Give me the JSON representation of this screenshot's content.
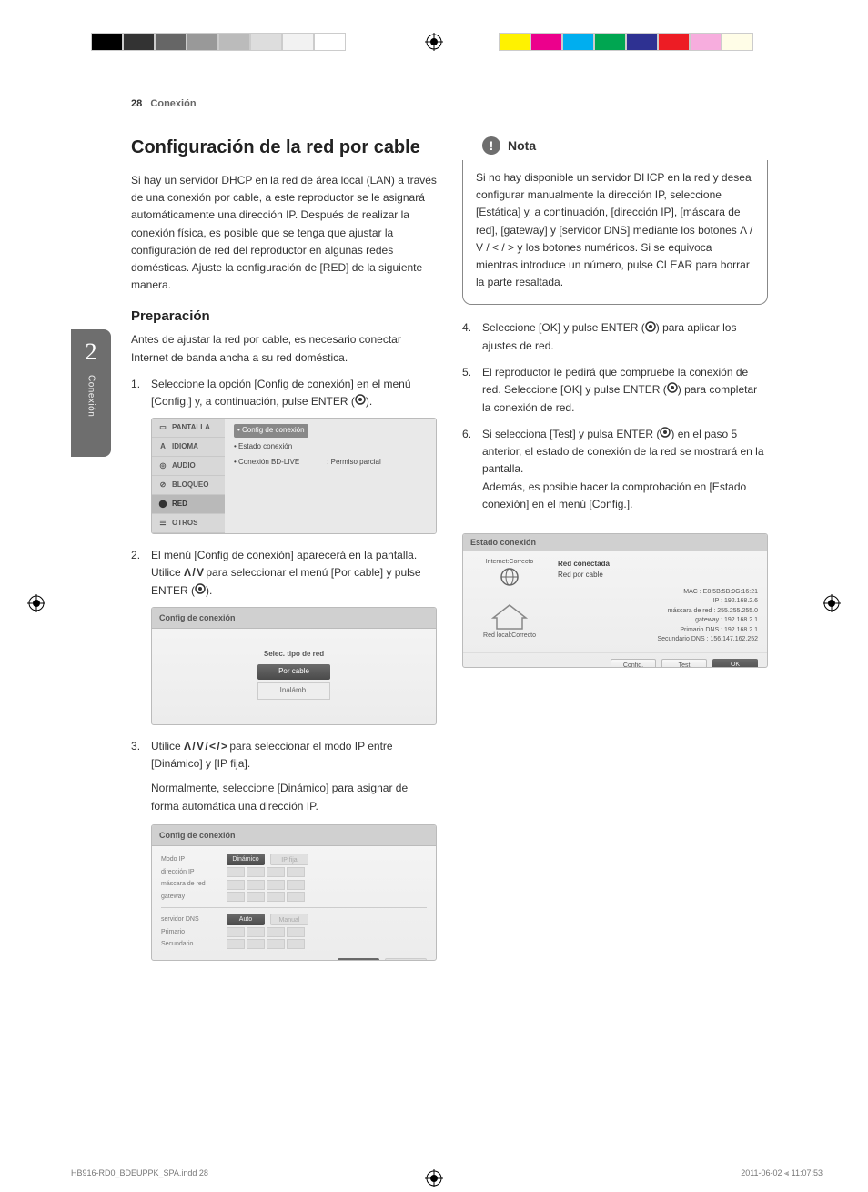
{
  "print_marks": {
    "left_swatches": [
      "#000000",
      "#333333",
      "#666666",
      "#999999",
      "#bbbbbb",
      "#dddddd",
      "#f2f2f2",
      "#ffffff"
    ],
    "right_swatches": [
      "#fff200",
      "#ec008c",
      "#00aeef",
      "#00a651",
      "#2e3192",
      "#ed1c24",
      "#f7adde",
      "#fffde7"
    ]
  },
  "header": {
    "page_number": "28",
    "section": "Conexión"
  },
  "side_tab": {
    "number": "2",
    "label": "Conexión"
  },
  "left_col": {
    "h1": "Configuración de la red por cable",
    "intro": "Si hay un servidor DHCP en la red de área local (LAN) a través de una conexión por cable, a este reproductor se le asignará automáticamente una dirección IP. Después de realizar la conexión física, es posible que se tenga que ajustar la configuración de red del reproductor en algunas redes domésticas. Ajuste la configuración de [RED] de la siguiente manera.",
    "h2": "Preparación",
    "prep": "Antes de ajustar la red por cable, es necesario conectar Internet de banda ancha a su red doméstica.",
    "step1": "Seleccione la opción [Config de conexión] en el menú [Config.] y, a continuación, pulse ENTER (",
    "step1b": ").",
    "screenshot1": {
      "side_items": [
        "PANTALLA",
        "IDIOMA",
        "AUDIO",
        "BLOQUEO",
        "RED",
        "OTROS"
      ],
      "selected_index": 4,
      "main_rows": [
        {
          "text": "Config de conexión",
          "hl": true
        },
        {
          "text": "Estado conexión",
          "hl": false
        },
        {
          "text": "Conexión BD-LIVE",
          "hl": false,
          "right": ": Permiso parcial"
        }
      ]
    },
    "step2a": "El menú [Config de conexión] aparecerá en la pantalla. Utilice ",
    "step2b": " para seleccionar el menú [Por cable] y pulse ENTER (",
    "step2c": ").",
    "screenshot2": {
      "title": "Config de conexión",
      "subtitle": "Selec. tipo de red",
      "options": [
        "Por cable",
        "Inalámb."
      ],
      "selected": 0
    },
    "step3a": "Utilice ",
    "step3b": " para seleccionar el modo IP entre [Dinámico] y [IP fija].",
    "step3p": "Normalmente, seleccione [Dinámico] para asignar de forma automática una dirección IP.",
    "screenshot3": {
      "title": "Config de conexión",
      "rows": [
        {
          "label": "Modo IP",
          "on": "Dinámico",
          "off": "IP fija"
        },
        {
          "label": "dirección IP",
          "cells": true
        },
        {
          "label": "máscara de red",
          "cells": true
        },
        {
          "label": "gateway",
          "cells": true
        }
      ],
      "rows2": [
        {
          "label": "servidor DNS",
          "on": "Auto",
          "off": "Manual"
        },
        {
          "label": "Primario",
          "cells": true
        },
        {
          "label": "Secundario",
          "cells": true
        }
      ],
      "foot": [
        "OK",
        "Cancelar"
      ]
    }
  },
  "right_col": {
    "note_label": "Nota",
    "note_body": "Si no hay disponible un servidor DHCP en la red y desea configurar manualmente la dirección IP, seleccione [Estática] y, a continuación, [dirección IP], [máscara de red], [gateway] y [servidor DNS] mediante los botones Λ / V / < / > y los botones numéricos. Si se equivoca mientras introduce un número, pulse CLEAR para borrar la parte resaltada.",
    "step4a": "Seleccione [OK] y pulse ENTER (",
    "step4b": ") para aplicar los ajustes de red.",
    "step5a": "El reproductor le pedirá que compruebe la conexión de red. Seleccione [OK] y pulse ENTER (",
    "step5b": ") para completar la conexión de red.",
    "step6a": "Si selecciona [Test] y pulsa ENTER (",
    "step6b": ") en el paso 5 anterior, el estado de conexión de la red se mostrará en la pantalla.",
    "step6c": "Además, es posible hacer la comprobación en [Estado conexión] en el menú [Config.].",
    "screenshot4": {
      "title": "Estado conexión",
      "top_label": "Internet:Correcto",
      "bottom_label": "Red local:Correcto",
      "right_title": "Red conectada",
      "right_sub": "Red por cable",
      "vals": [
        "MAC : E8:5B:5B:9G:16:21",
        "IP : 192.168.2.6",
        "máscara de red : 255.255.255.0",
        "gateway : 192.168.2.1",
        "Primario DNS : 192.168.2.1",
        "Secundario DNS : 156.147.162.252"
      ],
      "buttons": [
        "Config.",
        "Test",
        "OK"
      ]
    }
  },
  "footer": {
    "left": "HB916-RD0_BDEUPPK_SPA.indd   28",
    "right": "2011-06-02   ⫷ 11:07:53"
  },
  "glyphs": {
    "arrows_vert": "Λ / V",
    "arrows_all": "Λ / V / < / >"
  },
  "colors": {
    "tab_bg": "#6e6e6e",
    "text": "#333333",
    "light_border": "#bbbbbb"
  }
}
